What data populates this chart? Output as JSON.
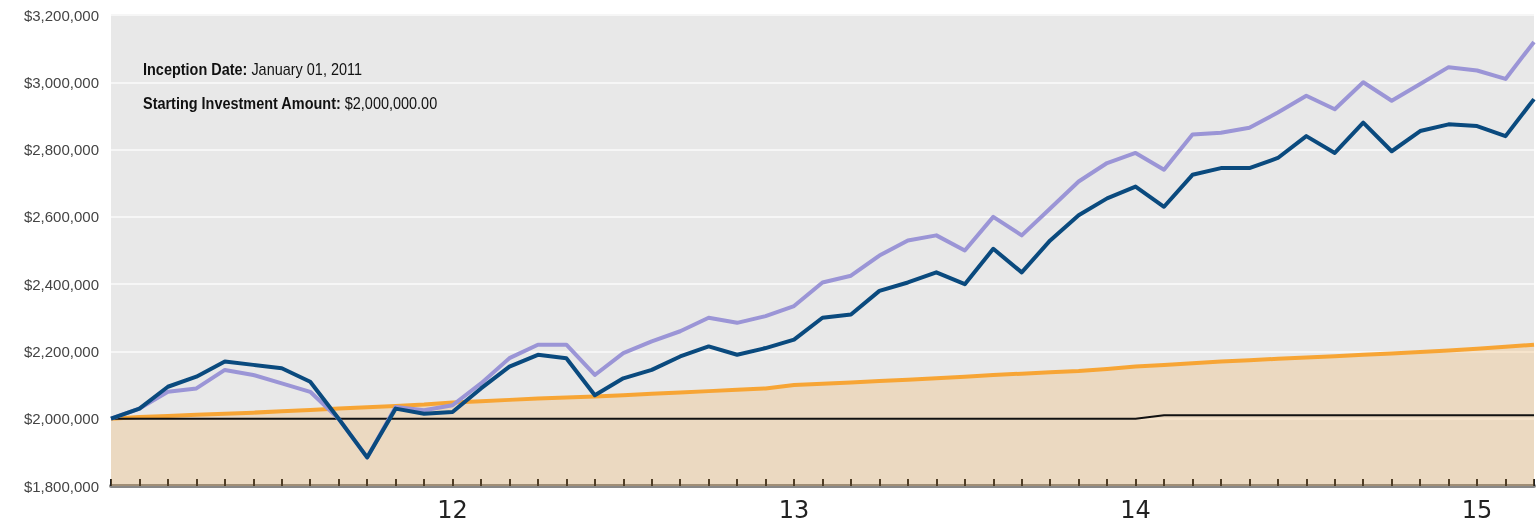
{
  "chart_data": {
    "type": "line",
    "categories": [
      null,
      null,
      null,
      null,
      null,
      null,
      null,
      null,
      null,
      null,
      null,
      null,
      "12",
      null,
      null,
      null,
      null,
      null,
      null,
      null,
      null,
      null,
      null,
      null,
      "13",
      null,
      null,
      null,
      null,
      null,
      null,
      null,
      null,
      null,
      null,
      null,
      "14",
      null,
      null,
      null,
      null,
      null,
      null,
      null,
      null,
      null,
      null,
      null,
      "15",
      null,
      null
    ],
    "series": [
      {
        "type": "area",
        "color": "#f7a535",
        "values": [
          2000000,
          2005000,
          2008000,
          2012000,
          2015000,
          2018000,
          2022000,
          2026000,
          2030000,
          2034000,
          2038000,
          2042000,
          2048000,
          2052000,
          2056000,
          2060000,
          2063000,
          2066000,
          2070000,
          2074000,
          2078000,
          2082000,
          2086000,
          2090000,
          2100000,
          2104000,
          2108000,
          2112000,
          2116000,
          2120000,
          2125000,
          2130000,
          2134000,
          2138000,
          2142000,
          2148000,
          2155000,
          2160000,
          2165000,
          2170000,
          2174000,
          2178000,
          2182000,
          2186000,
          2190000,
          2194000,
          2198000,
          2203000,
          2208000,
          2214000,
          2220000
        ]
      },
      {
        "color": "#111111",
        "values": [
          2000000,
          2000000,
          2000000,
          2000000,
          2000000,
          2000000,
          2000000,
          2000000,
          2000000,
          2000000,
          2000000,
          2000000,
          2000000,
          2000000,
          2000000,
          2000000,
          2000000,
          2000000,
          2000000,
          2000000,
          2000000,
          2000000,
          2000000,
          2000000,
          2000000,
          2000000,
          2000000,
          2000000,
          2000000,
          2000000,
          2000000,
          2000000,
          2000000,
          2000000,
          2000000,
          2000000,
          2000000,
          2010000,
          2010000,
          2010000,
          2010000,
          2010000,
          2010000,
          2010000,
          2010000,
          2010000,
          2010000,
          2010000,
          2010000,
          2010000,
          2010000
        ]
      },
      {
        "color": "#9b95d6",
        "values": [
          2000000,
          2030000,
          2080000,
          2090000,
          2145000,
          2130000,
          2105000,
          2080000,
          2000000,
          1885000,
          2035000,
          2025000,
          2040000,
          2105000,
          2180000,
          2220000,
          2220000,
          2130000,
          2195000,
          2230000,
          2260000,
          2300000,
          2285000,
          2305000,
          2335000,
          2405000,
          2425000,
          2485000,
          2530000,
          2545000,
          2500000,
          2600000,
          2545000,
          2625000,
          2705000,
          2760000,
          2790000,
          2740000,
          2845000,
          2850000,
          2865000,
          2910000,
          2960000,
          2920000,
          3000000,
          2945000,
          2995000,
          3045000,
          3035000,
          3010000,
          3120000
        ]
      },
      {
        "color": "#0a4a7e",
        "values": [
          2000000,
          2030000,
          2095000,
          2125000,
          2170000,
          2160000,
          2150000,
          2110000,
          2000000,
          1885000,
          2030000,
          2015000,
          2020000,
          2090000,
          2155000,
          2190000,
          2180000,
          2070000,
          2120000,
          2145000,
          2185000,
          2215000,
          2190000,
          2210000,
          2235000,
          2300000,
          2310000,
          2380000,
          2405000,
          2435000,
          2400000,
          2505000,
          2435000,
          2530000,
          2605000,
          2655000,
          2690000,
          2630000,
          2725000,
          2745000,
          2745000,
          2775000,
          2840000,
          2790000,
          2880000,
          2795000,
          2855000,
          2875000,
          2870000,
          2840000,
          2950000
        ]
      }
    ],
    "ylim": [
      1800000,
      3200000
    ],
    "yticks": [
      {
        "value": 1800000,
        "label": "$1,800,000"
      },
      {
        "value": 2000000,
        "label": "$2,000,000"
      },
      {
        "value": 2200000,
        "label": "$2,200,000"
      },
      {
        "value": 2400000,
        "label": "$2,400,000"
      },
      {
        "value": 2600000,
        "label": "$2,600,000"
      },
      {
        "value": 2800000,
        "label": "$2,800,000"
      },
      {
        "value": 3000000,
        "label": "$3,000,000"
      },
      {
        "value": 3200000,
        "label": "$3,200,000"
      }
    ],
    "grid": "y",
    "marker": "none",
    "line_style": "solid",
    "annotations": [
      "Inception Date: January 01, 2011",
      "Starting Investment Amount: $2,000,000.00"
    ]
  }
}
